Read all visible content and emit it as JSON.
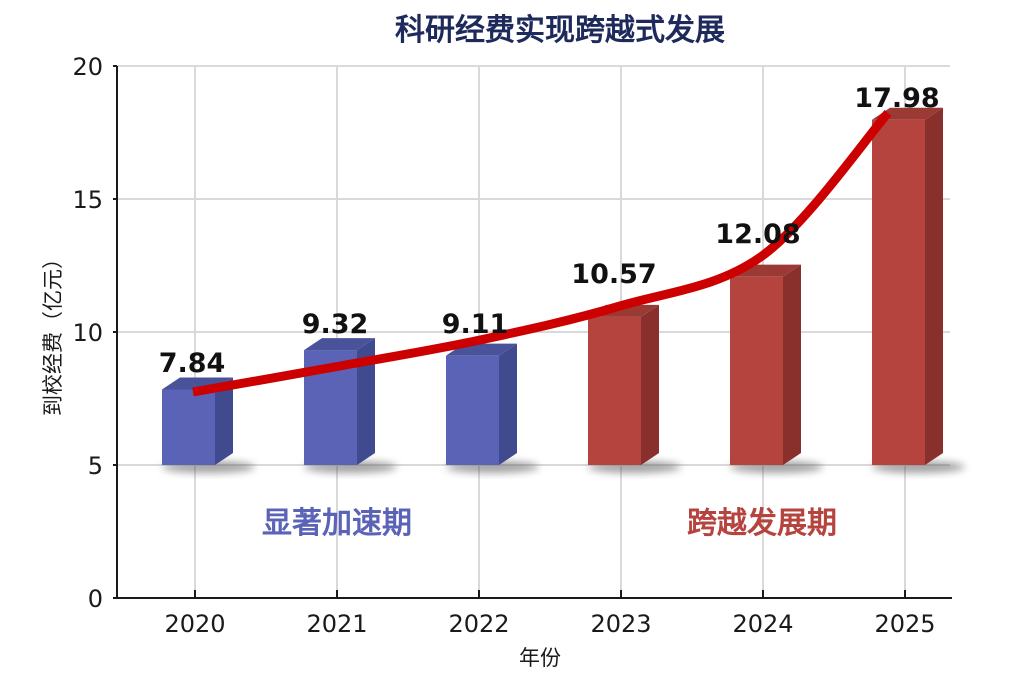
{
  "chart_data": {
    "type": "bar",
    "title": "科研经费实现跨越式发展",
    "xlabel": "年份",
    "ylabel": "到校经费（亿元）",
    "ylim": [
      0,
      20
    ],
    "yticks": [
      0,
      5,
      10,
      15,
      20
    ],
    "grid": true,
    "categories": [
      "2020",
      "2021",
      "2022",
      "2023",
      "2024",
      "2025"
    ],
    "values": [
      7.84,
      9.32,
      9.11,
      10.57,
      12.08,
      17.98
    ],
    "bar_base": 5,
    "data_labels": [
      "7.84",
      "9.32",
      "9.11",
      "10.57",
      "12.08",
      "17.98"
    ],
    "bar_colors": [
      "#5b63b7",
      "#5b63b7",
      "#5b63b7",
      "#b5443f",
      "#b5443f",
      "#b5443f"
    ],
    "trend_line": {
      "color": "#cc0000",
      "style": "smooth curve",
      "from": "2020",
      "to": "2025"
    },
    "annotations": [
      {
        "text": "显著加速期",
        "color": "#5b63b7",
        "span": [
          "2020",
          "2022"
        ]
      },
      {
        "text": "跨越发展期",
        "color": "#b5443f",
        "span": [
          "2023",
          "2025"
        ]
      }
    ]
  },
  "colors": {
    "title": "#1f2a5c",
    "blue_front": "#5b63b7",
    "blue_side": "#404a8e",
    "blue_top": "#4a5299",
    "red_front": "#b5443f",
    "red_side": "#8a302c",
    "red_top": "#9b3a35",
    "trend": "#cc0000",
    "grid": "#d9d9d9",
    "axis": "#1a1a1a"
  }
}
